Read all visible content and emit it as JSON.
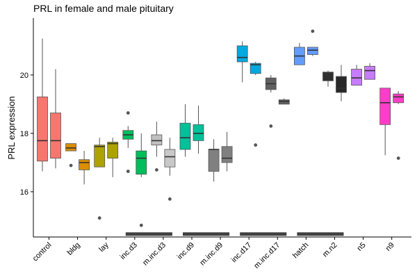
{
  "chart_data": {
    "type": "box",
    "title": "PRL in female and male pituitary",
    "xlabel": "",
    "ylabel": "PRL expression",
    "ylim": [
      14.45,
      21.95
    ],
    "yticks": [
      16,
      18,
      20
    ],
    "categories": [
      "control",
      "bldg",
      "lay",
      "inc.d3",
      "m.inc.d3",
      "inc.d9",
      "m.inc.d9",
      "inc.d17",
      "m.inc.d17",
      "hatch",
      "m.n2",
      "n5",
      "n9"
    ],
    "colors": [
      "#F8766D",
      "#DB8E00",
      "#AEA200",
      "#64B200",
      "#00BD5C",
      "#00C1A7",
      "#00BADE",
      "#00A6FF",
      "#B385FF",
      "#EF67EB",
      "#FF63B6"
    ],
    "sexes": [
      "female",
      "male"
    ],
    "boxes": [
      {
        "category": "control",
        "sex": "female",
        "color": "#F8766D",
        "min": 16.7,
        "q1": 17.05,
        "median": 17.75,
        "q3": 19.25,
        "max": 21.25,
        "outliers": []
      },
      {
        "category": "control",
        "sex": "male",
        "color": "#F8766D",
        "min": 16.8,
        "q1": 17.15,
        "median": 17.75,
        "q3": 18.7,
        "max": 20.2,
        "outliers": []
      },
      {
        "category": "bldg",
        "sex": "female",
        "color": "#DB8E00",
        "min": 17.4,
        "q1": 17.4,
        "median": 17.5,
        "q3": 17.65,
        "max": 17.65,
        "outliers": [
          16.9
        ]
      },
      {
        "category": "bldg",
        "sex": "male",
        "color": "#DB8E00",
        "min": 16.25,
        "q1": 16.75,
        "median": 17.0,
        "q3": 17.1,
        "max": 17.4,
        "outliers": []
      },
      {
        "category": "lay",
        "sex": "female",
        "color": "#AEA200",
        "min": 16.85,
        "q1": 16.85,
        "median": 17.55,
        "q3": 17.6,
        "max": 17.85,
        "outliers": [
          15.1
        ]
      },
      {
        "category": "lay",
        "sex": "male",
        "color": "#AEA200",
        "min": 16.5,
        "q1": 17.15,
        "median": 17.65,
        "q3": 17.7,
        "max": 17.85,
        "outliers": []
      },
      {
        "category": "inc.d3",
        "sex": "female",
        "color": "#00BD5C",
        "min": 17.5,
        "q1": 17.8,
        "median": 17.95,
        "q3": 18.1,
        "max": 18.25,
        "outliers": [
          18.7,
          16.7
        ]
      },
      {
        "category": "inc.d3",
        "sex": "male",
        "color": "#00BD5C",
        "min": 16.5,
        "q1": 16.6,
        "median": 17.15,
        "q3": 17.4,
        "max": 18.0,
        "outliers": [
          14.85
        ]
      },
      {
        "category": "m.inc.d3",
        "sex": "female",
        "color": "#C0C0C0",
        "min": 17.2,
        "q1": 17.6,
        "median": 17.75,
        "q3": 17.95,
        "max": 18.4,
        "outliers": [
          16.75
        ]
      },
      {
        "category": "m.inc.d3",
        "sex": "male",
        "color": "#C8C8C8",
        "min": 16.55,
        "q1": 16.85,
        "median": 17.2,
        "q3": 17.45,
        "max": 17.85,
        "outliers": [
          15.75
        ]
      },
      {
        "category": "inc.d9",
        "sex": "female",
        "color": "#00C19A",
        "min": 17.2,
        "q1": 17.45,
        "median": 17.85,
        "q3": 18.35,
        "max": 19.0,
        "outliers": []
      },
      {
        "category": "inc.d9",
        "sex": "male",
        "color": "#00C19A",
        "min": 17.3,
        "q1": 17.75,
        "median": 18.0,
        "q3": 18.3,
        "max": 18.95,
        "outliers": []
      },
      {
        "category": "m.inc.d9",
        "sex": "female",
        "color": "#808080",
        "min": 16.35,
        "q1": 16.7,
        "median": 17.45,
        "q3": 17.45,
        "max": 17.8,
        "outliers": []
      },
      {
        "category": "m.inc.d9",
        "sex": "male",
        "color": "#808080",
        "min": 16.7,
        "q1": 17.0,
        "median": 17.15,
        "q3": 17.55,
        "max": 18.05,
        "outliers": []
      },
      {
        "category": "inc.d17",
        "sex": "female",
        "color": "#00A9E0",
        "min": 19.75,
        "q1": 20.45,
        "median": 20.6,
        "q3": 21.0,
        "max": 21.15,
        "outliers": []
      },
      {
        "category": "inc.d17",
        "sex": "male",
        "color": "#00A9E0",
        "min": 20.0,
        "q1": 20.05,
        "median": 20.35,
        "q3": 20.4,
        "max": 20.45,
        "outliers": [
          17.6
        ]
      },
      {
        "category": "m.inc.d17",
        "sex": "female",
        "color": "#606060",
        "min": 19.4,
        "q1": 19.5,
        "median": 19.7,
        "q3": 19.9,
        "max": 20.0,
        "outliers": [
          18.25
        ]
      },
      {
        "category": "m.inc.d17",
        "sex": "male",
        "color": "#606060",
        "min": 19.0,
        "q1": 19.0,
        "median": 19.1,
        "q3": 19.15,
        "max": 19.2,
        "outliers": []
      },
      {
        "category": "hatch",
        "sex": "female",
        "color": "#619CFF",
        "min": 20.35,
        "q1": 20.35,
        "median": 20.65,
        "q3": 20.95,
        "max": 21.1,
        "outliers": []
      },
      {
        "category": "hatch",
        "sex": "male",
        "color": "#619CFF",
        "min": 20.65,
        "q1": 20.7,
        "median": 20.85,
        "q3": 20.95,
        "max": 20.95,
        "outliers": [
          21.5
        ]
      },
      {
        "category": "m.n2",
        "sex": "female",
        "color": "#303030",
        "min": 19.6,
        "q1": 19.8,
        "median": 20.05,
        "q3": 20.1,
        "max": 20.15,
        "outliers": []
      },
      {
        "category": "m.n2",
        "sex": "male",
        "color": "#282828",
        "min": 19.1,
        "q1": 19.4,
        "median": 19.55,
        "q3": 19.95,
        "max": 20.35,
        "outliers": []
      },
      {
        "category": "n5",
        "sex": "female",
        "color": "#C77CFF",
        "min": 19.65,
        "q1": 19.65,
        "median": 19.9,
        "q3": 20.2,
        "max": 20.35,
        "outliers": []
      },
      {
        "category": "n5",
        "sex": "male",
        "color": "#C77CFF",
        "min": 19.85,
        "q1": 19.85,
        "median": 20.15,
        "q3": 20.3,
        "max": 20.4,
        "outliers": []
      },
      {
        "category": "n9",
        "sex": "female",
        "color": "#FF3DC8",
        "min": 17.25,
        "q1": 18.3,
        "median": 19.05,
        "q3": 19.55,
        "max": 19.55,
        "outliers": []
      },
      {
        "category": "n9",
        "sex": "male",
        "color": "#FF3DC8",
        "min": 19.0,
        "q1": 19.05,
        "median": 19.25,
        "q3": 19.35,
        "max": 19.45,
        "outliers": [
          17.15
        ]
      }
    ],
    "significance_bars": [
      {
        "from": "inc.d3",
        "to": "m.inc.d3",
        "y": 14.55
      },
      {
        "from": "inc.d9",
        "to": "m.inc.d9",
        "y": 14.55
      },
      {
        "from": "inc.d17",
        "to": "m.inc.d17",
        "y": 14.55
      },
      {
        "from": "hatch",
        "to": "m.n2",
        "y": 14.55
      }
    ],
    "grid": false,
    "legend": "none"
  }
}
